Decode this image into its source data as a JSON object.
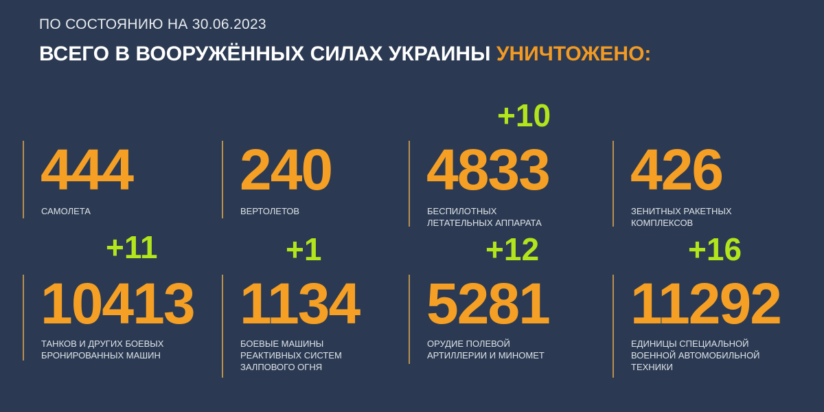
{
  "header": {
    "subtitle": "ПО СОСТОЯНИЮ НА 30.06.2023",
    "title_main": "ВСЕГО В ВООРУЖЁННЫХ СИЛАХ УКРАИНЫ",
    "title_highlight": "УНИЧТОЖЕНО:"
  },
  "colors": {
    "background": "#2b3a52",
    "number": "#f5a025",
    "delta": "#b2e51c",
    "divider": "#b8914f"
  },
  "stats": [
    {
      "value": "444",
      "label": "САМОЛЕТА",
      "delta": ""
    },
    {
      "value": "240",
      "label": "ВЕРТОЛЕТОВ",
      "delta": ""
    },
    {
      "value": "4833",
      "label": "БЕСПИЛОТНЫХ\nЛЕТАТЕЛЬНЫХ АППАРАТА",
      "delta": "+10"
    },
    {
      "value": "426",
      "label": "ЗЕНИТНЫХ РАКЕТНЫХ\nКОМПЛЕКСОВ",
      "delta": ""
    },
    {
      "value": "10413",
      "label": "ТАНКОВ И ДРУГИХ БОЕВЫХ\nБРОНИРОВАННЫХ МАШИН",
      "delta": "+11"
    },
    {
      "value": "1134",
      "label": "БОЕВЫЕ МАШИНЫ\nРЕАКТИВНЫХ СИСТЕМ\nЗАЛПОВОГО ОГНЯ",
      "delta": "+1"
    },
    {
      "value": "5281",
      "label": "ОРУДИЕ ПОЛЕВОЙ\nАРТИЛЛЕРИИ И МИНОМЕТ",
      "delta": "+12"
    },
    {
      "value": "11292",
      "label": "ЕДИНИЦЫ СПЕЦИАЛЬНОЙ\nВОЕННОЙ АВТОМОБИЛЬНОЙ\nТЕХНИКИ",
      "delta": "+16"
    }
  ]
}
